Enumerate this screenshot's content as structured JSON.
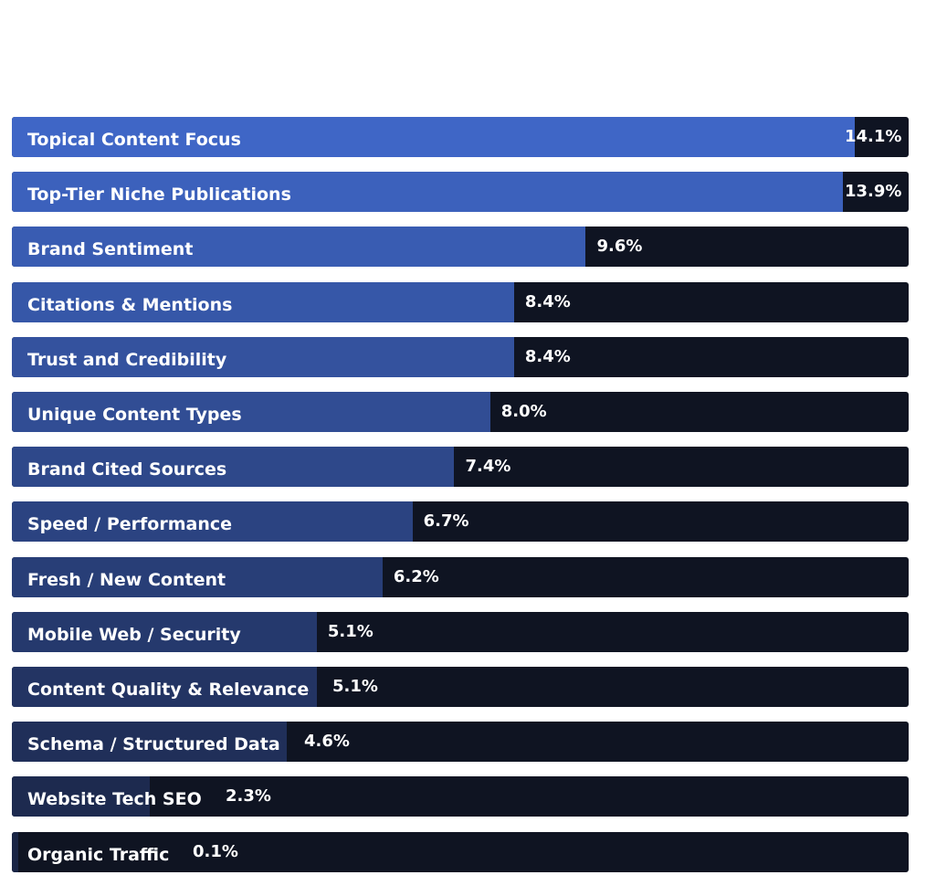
{
  "colors": {
    "track": "#0f1422",
    "fill_top": "#3f66c6",
    "fill_bottom": "#1a2545"
  },
  "chart_data": {
    "type": "bar",
    "orientation": "horizontal",
    "xlim": [
      0,
      15
    ],
    "grid": false,
    "categories": [
      "Topical Content Focus",
      "Top-Tier Niche Publications",
      "Brand Sentiment",
      "Citations & Mentions",
      "Trust and Credibility",
      "Unique Content Types",
      "Brand Cited Sources",
      "Speed / Performance",
      "Fresh / New Content",
      "Mobile Web / Security",
      "Content Quality & Relevance",
      "Schema / Structured Data",
      "Website Tech SEO",
      "Organic Traffic"
    ],
    "values": [
      14.1,
      13.9,
      9.6,
      8.4,
      8.4,
      8.0,
      7.4,
      6.7,
      6.2,
      5.1,
      5.1,
      4.6,
      2.3,
      0.1
    ],
    "value_labels": [
      "14.1%",
      "13.9%",
      "9.6%",
      "8.4%",
      "8.4%",
      "8.0%",
      "7.4%",
      "6.7%",
      "6.2%",
      "5.1%",
      "5.1%",
      "4.6%",
      "2.3%",
      "0.1%"
    ]
  }
}
